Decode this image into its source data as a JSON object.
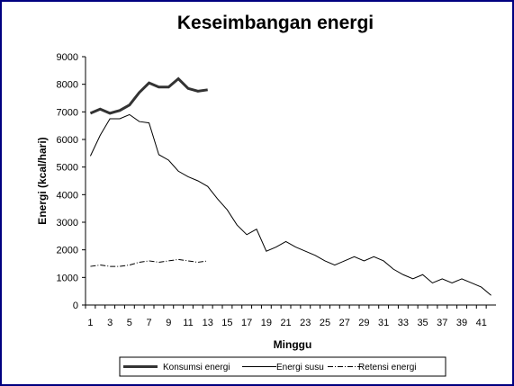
{
  "chart_data": {
    "type": "line",
    "title": "Keseimbangan energi",
    "xlabel": "Minggu",
    "ylabel": "Energi (kcal/hari)",
    "xlim": [
      1,
      42
    ],
    "ylim": [
      0,
      9000
    ],
    "y_ticks": [
      "0",
      "1000",
      "2000",
      "3000",
      "4000",
      "5000",
      "6000",
      "7000",
      "8000",
      "9000"
    ],
    "x_ticks": [
      "1",
      "3",
      "5",
      "7",
      "9",
      "11",
      "13",
      "15",
      "17",
      "19",
      "21",
      "23",
      "25",
      "27",
      "29",
      "31",
      "33",
      "35",
      "37",
      "39",
      "41"
    ],
    "grid": false,
    "legend_position": "bottom",
    "series": [
      {
        "name": "Konsumsi energi",
        "style": "thick",
        "x": [
          1,
          2,
          3,
          4,
          5,
          6,
          7,
          8,
          9,
          10,
          11,
          12,
          13
        ],
        "values": [
          6950,
          7100,
          6950,
          7050,
          7250,
          7700,
          8050,
          7900,
          7900,
          8200,
          7850,
          7750,
          7800
        ]
      },
      {
        "name": "Energi susu",
        "style": "thin",
        "x": [
          1,
          2,
          3,
          4,
          5,
          6,
          7,
          8,
          9,
          10,
          11,
          12,
          13,
          14,
          15,
          16,
          17,
          18,
          19,
          20,
          21,
          22,
          23,
          24,
          25,
          26,
          27,
          28,
          29,
          30,
          31,
          32,
          33,
          34,
          35,
          36,
          37,
          38,
          39,
          40,
          41,
          42
        ],
        "values": [
          5400,
          6150,
          6750,
          6750,
          6900,
          6650,
          6600,
          5450,
          5250,
          4850,
          4650,
          4500,
          4300,
          3850,
          3450,
          2900,
          2550,
          2750,
          1950,
          2100,
          2300,
          2100,
          1950,
          1800,
          1600,
          1450,
          1600,
          1750,
          1600,
          1750,
          1600,
          1300,
          1100,
          950,
          1100,
          800,
          950,
          800,
          950,
          800,
          650,
          350
        ]
      },
      {
        "name": "Retensi energi",
        "style": "dashed",
        "x": [
          1,
          2,
          3,
          4,
          5,
          6,
          7,
          8,
          9,
          10,
          11,
          12,
          13
        ],
        "values": [
          1400,
          1450,
          1400,
          1400,
          1450,
          1550,
          1600,
          1550,
          1600,
          1650,
          1600,
          1550,
          1600
        ]
      }
    ]
  }
}
